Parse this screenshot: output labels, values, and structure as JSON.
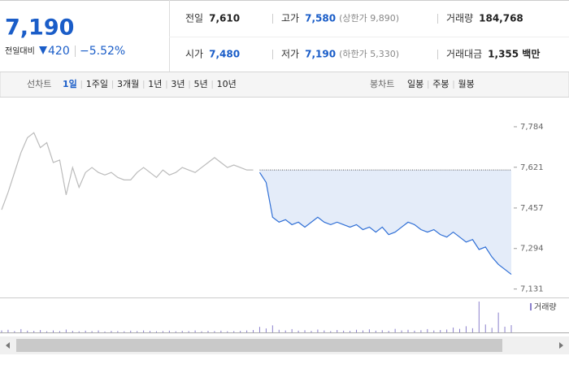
{
  "quote": {
    "price": "7,190",
    "change_label": "전일대비",
    "change": "420",
    "change_pct": "−5.52%"
  },
  "stats": [
    [
      {
        "label": "전일",
        "value": "7,610",
        "color": "#222222"
      },
      {
        "label": "고가",
        "value": "7,580",
        "note": "(상한가 9,890)",
        "color": "#1a5dc8"
      },
      {
        "label": "거래량",
        "value": "184,768",
        "color": "#222222"
      }
    ],
    [
      {
        "label": "시가",
        "value": "7,480",
        "color": "#1a5dc8"
      },
      {
        "label": "저가",
        "value": "7,190",
        "note": "(하한가 5,330)",
        "color": "#1a5dc8"
      },
      {
        "label": "거래대금",
        "value": "1,355 백만",
        "color": "#222222"
      }
    ]
  ],
  "toolbar": {
    "line_label": "선차트",
    "line_periods": [
      "1일",
      "1주일",
      "3개월",
      "1년",
      "3년",
      "5년",
      "10년"
    ],
    "candle_label": "봉차트",
    "candle_periods": [
      "일봉",
      "주봉",
      "월봉"
    ]
  },
  "chart_data": {
    "type": "line",
    "ylim": [
      7110,
      7810
    ],
    "yticks": [
      {
        "value": 7784,
        "label": "7,784"
      },
      {
        "value": 7621,
        "label": "7,621"
      },
      {
        "value": 7457,
        "label": "7,457"
      },
      {
        "value": 7294,
        "label": "7,294"
      },
      {
        "value": 7131,
        "label": "7,131"
      }
    ],
    "baseline": 7610,
    "series": [
      {
        "color": "#bbbbbb",
        "values": [
          7450,
          7520,
          7600,
          7680,
          7740,
          7760,
          7700,
          7720,
          7640,
          7650,
          7510,
          7620,
          7540,
          7600,
          7620,
          7600,
          7590,
          7600,
          7580,
          7570,
          7570,
          7600,
          7620,
          7600,
          7580,
          7610,
          7590,
          7600,
          7620,
          7610,
          7600,
          7620,
          7640,
          7660,
          7640,
          7620,
          7630,
          7620,
          7610,
          7610,
          null,
          null,
          null,
          null,
          null,
          null,
          null,
          null,
          null,
          null,
          null,
          null,
          null,
          null,
          null,
          null,
          null,
          null,
          null,
          null,
          null,
          null,
          null,
          null,
          null,
          null,
          null,
          null,
          null,
          null,
          null,
          null,
          null,
          null,
          null,
          null,
          null,
          null,
          null,
          null
        ]
      },
      {
        "color": "#2f6fd6",
        "fill": "#e4ecf9",
        "values": [
          null,
          null,
          null,
          null,
          null,
          null,
          null,
          null,
          null,
          null,
          null,
          null,
          null,
          null,
          null,
          null,
          null,
          null,
          null,
          null,
          null,
          null,
          null,
          null,
          null,
          null,
          null,
          null,
          null,
          null,
          null,
          null,
          null,
          null,
          null,
          null,
          null,
          null,
          null,
          null,
          7600,
          7560,
          7420,
          7400,
          7410,
          7390,
          7400,
          7380,
          7400,
          7420,
          7400,
          7390,
          7400,
          7390,
          7380,
          7390,
          7370,
          7380,
          7360,
          7380,
          7350,
          7360,
          7380,
          7400,
          7390,
          7370,
          7360,
          7370,
          7350,
          7340,
          7360,
          7340,
          7320,
          7330,
          7290,
          7300,
          7260,
          7230,
          7210,
          7190
        ]
      }
    ],
    "volume": {
      "name": "거래량",
      "color": "#8b80cc",
      "values": [
        900,
        1200,
        600,
        1500,
        800,
        700,
        1100,
        500,
        900,
        600,
        1300,
        700,
        500,
        800,
        600,
        900,
        400,
        700,
        600,
        500,
        800,
        600,
        900,
        700,
        500,
        600,
        800,
        500,
        700,
        600,
        900,
        500,
        700,
        600,
        800,
        500,
        600,
        700,
        900,
        1100,
        2500,
        1800,
        3200,
        1200,
        900,
        1500,
        800,
        1000,
        700,
        1300,
        900,
        600,
        1100,
        800,
        700,
        1200,
        900,
        1400,
        800,
        1000,
        700,
        1600,
        900,
        1200,
        800,
        1000,
        1500,
        900,
        1100,
        1300,
        2200,
        1600,
        2800,
        1900,
        14000,
        3600,
        2100,
        9000,
        2600,
        3300
      ]
    }
  }
}
